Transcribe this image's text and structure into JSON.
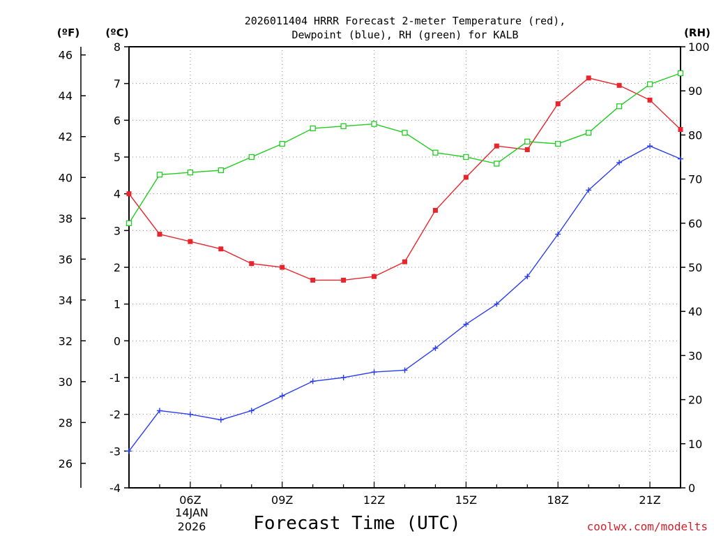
{
  "chart_data": {
    "type": "line",
    "title_line1": "2026011404 HRRR Forecast 2-meter Temperature (red),",
    "title_line2": "Dewpoint (blue), RH (green) for KALB",
    "xlabel": "Forecast Time (UTC)",
    "left_unit_f": "(ºF)",
    "left_unit_c": "(ºC)",
    "right_unit": "(RH)",
    "credit": "coolwx.com/modelts",
    "date_line1": "14JAN",
    "date_line2": "2026",
    "x_hours": [
      4,
      5,
      6,
      7,
      8,
      9,
      10,
      11,
      12,
      13,
      14,
      15,
      16,
      17,
      18,
      19,
      20,
      21,
      22
    ],
    "xlim": [
      4,
      22
    ],
    "x_ticks": [
      {
        "hour": 6,
        "label": "06Z"
      },
      {
        "hour": 9,
        "label": "09Z"
      },
      {
        "hour": 12,
        "label": "12Z"
      },
      {
        "hour": 15,
        "label": "15Z"
      },
      {
        "hour": 18,
        "label": "18Z"
      },
      {
        "hour": 21,
        "label": "21Z"
      }
    ],
    "ylim_c": [
      -4,
      8
    ],
    "yticks_c": [
      "-4",
      "-3",
      "-2",
      "-1",
      "0",
      "1",
      "2",
      "3",
      "4",
      "5",
      "6",
      "7",
      "8"
    ],
    "yticks_f": [
      "26",
      "28",
      "30",
      "32",
      "34",
      "36",
      "38",
      "40",
      "42",
      "44",
      "46"
    ],
    "ylim_rh": [
      0,
      100
    ],
    "yticks_rh": [
      "0",
      "10",
      "20",
      "30",
      "40",
      "50",
      "60",
      "70",
      "80",
      "90",
      "100"
    ],
    "series": [
      {
        "name": "Temperature",
        "unit": "C",
        "color": "#e8242c",
        "marker": "filled-square",
        "values": [
          4.0,
          2.9,
          2.7,
          2.5,
          2.1,
          2.0,
          1.65,
          1.65,
          1.75,
          2.15,
          3.55,
          4.45,
          5.3,
          5.2,
          6.45,
          7.15,
          6.95,
          6.55,
          5.75
        ]
      },
      {
        "name": "Dewpoint",
        "unit": "C",
        "color": "#2a3ef0",
        "marker": "plus",
        "values": [
          -3.0,
          -1.9,
          -2.0,
          -2.15,
          -1.9,
          -1.5,
          -1.1,
          -1.0,
          -0.85,
          -0.8,
          -0.2,
          0.45,
          1.0,
          1.75,
          2.9,
          4.1,
          4.85,
          5.3,
          4.95
        ]
      },
      {
        "name": "RH",
        "unit": "%",
        "color": "#22cc22",
        "marker": "open-square",
        "values": [
          60,
          71,
          71.5,
          72,
          75,
          78,
          81.5,
          82,
          82.5,
          80.5,
          76,
          75,
          73.5,
          78.5,
          78,
          80.5,
          86.5,
          91.5,
          94
        ]
      }
    ]
  }
}
